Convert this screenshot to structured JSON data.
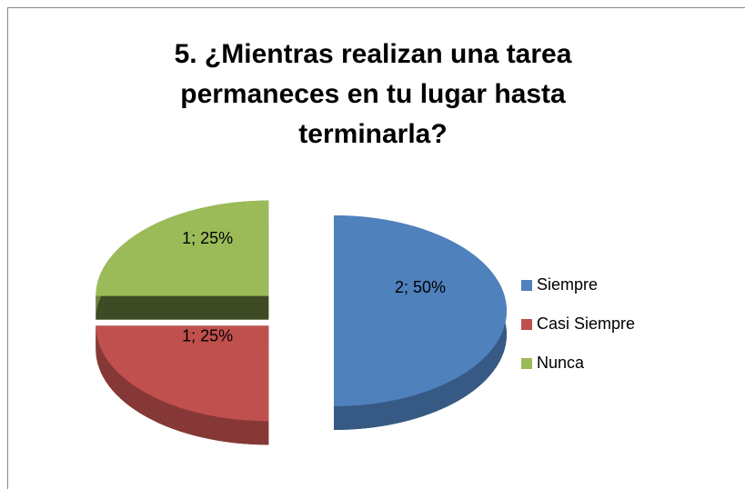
{
  "chart_data": {
    "type": "pie",
    "title": "5. ¿Mientras realizan una tarea permaneces en tu lugar hasta terminarla?",
    "categories": [
      "Siempre",
      "Casi Siempre",
      "Nunca"
    ],
    "values": [
      2,
      1,
      1
    ],
    "value_labels": [
      "2; 50%",
      "1; 25%",
      "1; 25%"
    ],
    "colors": [
      "#4f81bd",
      "#c0504d",
      "#9bbb59"
    ],
    "legend": "right"
  }
}
